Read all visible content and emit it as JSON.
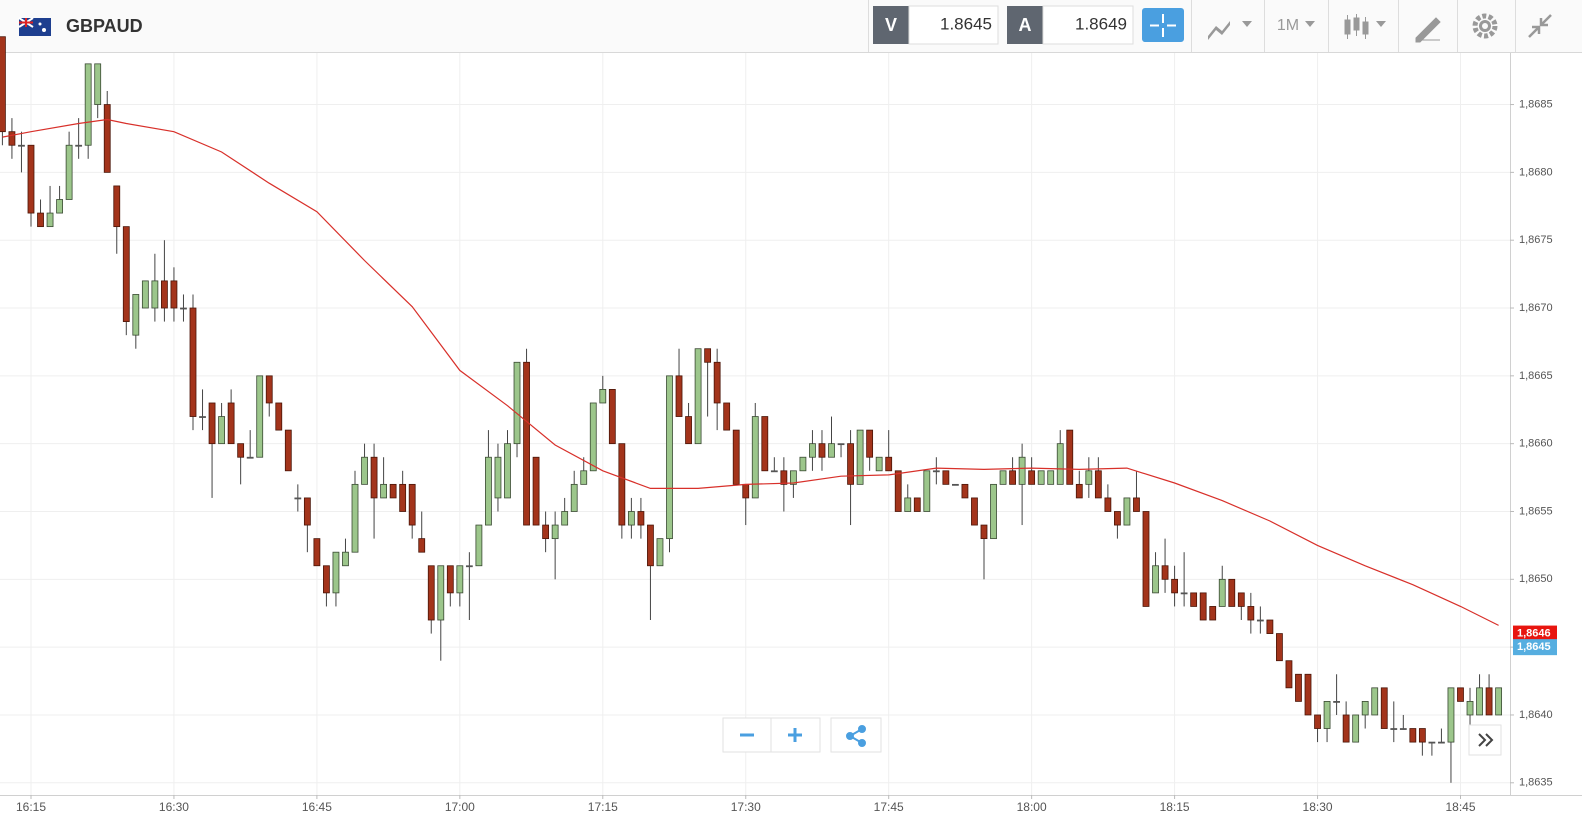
{
  "toolbar": {
    "symbol": "GBPAUD",
    "sell_label": "V",
    "sell_price": "1.8645",
    "buy_label": "A",
    "buy_price": "1.8649",
    "timeframe": "1M"
  },
  "chart_data": {
    "type": "candlestick",
    "up_color": "#9cc68b",
    "down_color": "#a3341b",
    "ylim": [
      1.86341,
      1.86888
    ],
    "yticks": [
      {
        "value": 1.8635,
        "label": "1,8635"
      },
      {
        "value": 1.864,
        "label": "1,8640"
      },
      {
        "value": 1.8645,
        "label": "1,8645"
      },
      {
        "value": 1.865,
        "label": "1,8650"
      },
      {
        "value": 1.8655,
        "label": "1,8655"
      },
      {
        "value": 1.866,
        "label": "1,8660"
      },
      {
        "value": 1.8665,
        "label": "1,8665"
      },
      {
        "value": 1.867,
        "label": "1,8670"
      },
      {
        "value": 1.8675,
        "label": "1,8675"
      },
      {
        "value": 1.868,
        "label": "1,8680"
      },
      {
        "value": 1.8685,
        "label": "1,8685"
      }
    ],
    "xticks": [
      "16:15",
      "16:30",
      "16:45",
      "17:00",
      "17:15",
      "17:30",
      "17:45",
      "18:00",
      "18:15",
      "18:30",
      "18:45"
    ],
    "grid": true,
    "markers": [
      {
        "value": 1.8646,
        "label": "1,8646",
        "color": "#e8150f"
      },
      {
        "value": 1.8645,
        "label": "1,8645",
        "color": "#56aee0"
      }
    ],
    "x": [
      "16:12",
      "16:13",
      "16:14",
      "16:15",
      "16:16",
      "16:17",
      "16:18",
      "16:19",
      "16:20",
      "16:21",
      "16:22",
      "16:23",
      "16:24",
      "16:25",
      "16:26",
      "16:27",
      "16:28",
      "16:29",
      "16:30",
      "16:31",
      "16:32",
      "16:33",
      "16:34",
      "16:35",
      "16:36",
      "16:37",
      "16:38",
      "16:39",
      "16:40",
      "16:41",
      "16:42",
      "16:43",
      "16:44",
      "16:45",
      "16:46",
      "16:47",
      "16:48",
      "16:49",
      "16:50",
      "16:51",
      "16:52",
      "16:53",
      "16:54",
      "16:55",
      "16:56",
      "16:57",
      "16:58",
      "16:59",
      "17:00",
      "17:01",
      "17:02",
      "17:03",
      "17:04",
      "17:05",
      "17:06",
      "17:07",
      "17:08",
      "17:09",
      "17:10",
      "17:11",
      "17:12",
      "17:13",
      "17:14",
      "17:15",
      "17:16",
      "17:17",
      "17:18",
      "17:19",
      "17:20",
      "17:21",
      "17:22",
      "17:23",
      "17:24",
      "17:25",
      "17:26",
      "17:27",
      "17:28",
      "17:29",
      "17:30",
      "17:31",
      "17:32",
      "17:33",
      "17:34",
      "17:35",
      "17:36",
      "17:37",
      "17:38",
      "17:39",
      "17:40",
      "17:41",
      "17:42",
      "17:43",
      "17:44",
      "17:45",
      "17:46",
      "17:47",
      "17:48",
      "17:49",
      "17:50",
      "17:51",
      "17:52",
      "17:53",
      "17:54",
      "17:55",
      "17:56",
      "17:57",
      "17:58",
      "17:59",
      "18:00",
      "18:01",
      "18:02",
      "18:03",
      "18:04",
      "18:05",
      "18:06",
      "18:07",
      "18:08",
      "18:09",
      "18:10",
      "18:11",
      "18:12",
      "18:13",
      "18:14",
      "18:15",
      "18:16",
      "18:17",
      "18:18",
      "18:19",
      "18:20",
      "18:21",
      "18:22",
      "18:23",
      "18:24",
      "18:25",
      "18:26",
      "18:27",
      "18:28",
      "18:29",
      "18:30",
      "18:31",
      "18:32",
      "18:33",
      "18:34",
      "18:35",
      "18:36",
      "18:37",
      "18:38",
      "18:39",
      "18:40",
      "18:41",
      "18:42",
      "18:43",
      "18:44",
      "18:45",
      "18:46",
      "18:47",
      "18:48",
      "18:49"
    ],
    "ohlc": [
      [
        1.869,
        1.869,
        1.8682,
        1.8683
      ],
      [
        1.8683,
        1.8684,
        1.8681,
        1.8682
      ],
      [
        1.8682,
        1.8683,
        1.868,
        1.8682
      ],
      [
        1.8682,
        1.8682,
        1.8676,
        1.8677
      ],
      [
        1.8677,
        1.8678,
        1.8676,
        1.8676
      ],
      [
        1.8676,
        1.8679,
        1.8676,
        1.8677
      ],
      [
        1.8677,
        1.8679,
        1.8677,
        1.8678
      ],
      [
        1.8678,
        1.8683,
        1.8678,
        1.8682
      ],
      [
        1.8682,
        1.8684,
        1.8681,
        1.8682
      ],
      [
        1.8682,
        1.8688,
        1.8681,
        1.8688
      ],
      [
        1.8685,
        1.8688,
        1.8684,
        1.8688
      ],
      [
        1.8685,
        1.8686,
        1.868,
        1.868
      ],
      [
        1.8679,
        1.8679,
        1.8674,
        1.8676
      ],
      [
        1.8676,
        1.8676,
        1.8668,
        1.8669
      ],
      [
        1.8668,
        1.8671,
        1.8667,
        1.8671
      ],
      [
        1.867,
        1.8672,
        1.867,
        1.8672
      ],
      [
        1.867,
        1.8674,
        1.8669,
        1.8672
      ],
      [
        1.8672,
        1.8675,
        1.8669,
        1.867
      ],
      [
        1.8672,
        1.8673,
        1.8669,
        1.867
      ],
      [
        1.867,
        1.8671,
        1.8669,
        1.867
      ],
      [
        1.867,
        1.8671,
        1.8661,
        1.8662
      ],
      [
        1.8662,
        1.8664,
        1.8661,
        1.8662
      ],
      [
        1.8663,
        1.8663,
        1.8656,
        1.866
      ],
      [
        1.866,
        1.8663,
        1.866,
        1.8662
      ],
      [
        1.8663,
        1.8664,
        1.866,
        1.866
      ],
      [
        1.866,
        1.866,
        1.8657,
        1.8659
      ],
      [
        1.8659,
        1.8661,
        1.8659,
        1.8659
      ],
      [
        1.8659,
        1.8665,
        1.8659,
        1.8665
      ],
      [
        1.8665,
        1.8665,
        1.8662,
        1.8663
      ],
      [
        1.8663,
        1.8663,
        1.8661,
        1.8661
      ],
      [
        1.8661,
        1.8661,
        1.8658,
        1.8658
      ],
      [
        1.8656,
        1.8657,
        1.8655,
        1.8656
      ],
      [
        1.8656,
        1.8656,
        1.8652,
        1.8654
      ],
      [
        1.8653,
        1.8653,
        1.8651,
        1.8651
      ],
      [
        1.8651,
        1.8651,
        1.8648,
        1.8649
      ],
      [
        1.8649,
        1.8652,
        1.8648,
        1.8652
      ],
      [
        1.8651,
        1.8653,
        1.8651,
        1.8652
      ],
      [
        1.8652,
        1.8658,
        1.8652,
        1.8657
      ],
      [
        1.8657,
        1.866,
        1.8657,
        1.8659
      ],
      [
        1.8659,
        1.866,
        1.8653,
        1.8656
      ],
      [
        1.8656,
        1.8659,
        1.8656,
        1.8657
      ],
      [
        1.8657,
        1.8657,
        1.8656,
        1.8656
      ],
      [
        1.8657,
        1.8658,
        1.8655,
        1.8655
      ],
      [
        1.8657,
        1.8657,
        1.8653,
        1.8654
      ],
      [
        1.8653,
        1.8655,
        1.8652,
        1.8652
      ],
      [
        1.8651,
        1.8651,
        1.8646,
        1.8647
      ],
      [
        1.8647,
        1.8651,
        1.8644,
        1.8651
      ],
      [
        1.8651,
        1.8651,
        1.8648,
        1.8649
      ],
      [
        1.8649,
        1.8651,
        1.8648,
        1.8651
      ],
      [
        1.8651,
        1.8652,
        1.8647,
        1.8651
      ],
      [
        1.8651,
        1.8654,
        1.8651,
        1.8654
      ],
      [
        1.8654,
        1.8661,
        1.8654,
        1.8659
      ],
      [
        1.8656,
        1.866,
        1.8655,
        1.8659
      ],
      [
        1.8656,
        1.8661,
        1.8656,
        1.866
      ],
      [
        1.866,
        1.8666,
        1.8659,
        1.8666
      ],
      [
        1.8666,
        1.8667,
        1.8654,
        1.8654
      ],
      [
        1.8659,
        1.8659,
        1.8654,
        1.8654
      ],
      [
        1.8654,
        1.8655,
        1.8652,
        1.8653
      ],
      [
        1.8653,
        1.8655,
        1.865,
        1.8654
      ],
      [
        1.8654,
        1.8656,
        1.8654,
        1.8655
      ],
      [
        1.8655,
        1.8658,
        1.8655,
        1.8657
      ],
      [
        1.8657,
        1.8659,
        1.8657,
        1.8658
      ],
      [
        1.8658,
        1.8663,
        1.8658,
        1.8663
      ],
      [
        1.8663,
        1.8665,
        1.8663,
        1.8664
      ],
      [
        1.8664,
        1.8664,
        1.866,
        1.866
      ],
      [
        1.866,
        1.866,
        1.8653,
        1.8654
      ],
      [
        1.8654,
        1.8656,
        1.8653,
        1.8655
      ],
      [
        1.8655,
        1.8656,
        1.8653,
        1.8654
      ],
      [
        1.8654,
        1.8654,
        1.8647,
        1.8651
      ],
      [
        1.8651,
        1.8653,
        1.8651,
        1.8653
      ],
      [
        1.8653,
        1.8665,
        1.8652,
        1.8665
      ],
      [
        1.8665,
        1.8667,
        1.8662,
        1.8662
      ],
      [
        1.8662,
        1.8663,
        1.866,
        1.866
      ],
      [
        1.866,
        1.8667,
        1.866,
        1.8667
      ],
      [
        1.8667,
        1.8667,
        1.8662,
        1.8666
      ],
      [
        1.8666,
        1.8667,
        1.8661,
        1.8663
      ],
      [
        1.8663,
        1.8663,
        1.8661,
        1.8661
      ],
      [
        1.8661,
        1.8661,
        1.8657,
        1.8657
      ],
      [
        1.8657,
        1.8657,
        1.8654,
        1.8656
      ],
      [
        1.8656,
        1.8663,
        1.8656,
        1.8662
      ],
      [
        1.8662,
        1.8662,
        1.8658,
        1.8658
      ],
      [
        1.8658,
        1.8659,
        1.8658,
        1.8658
      ],
      [
        1.8658,
        1.8659,
        1.8655,
        1.8657
      ],
      [
        1.8657,
        1.8658,
        1.8656,
        1.8658
      ],
      [
        1.8658,
        1.8659,
        1.8658,
        1.8659
      ],
      [
        1.8659,
        1.8661,
        1.8658,
        1.866
      ],
      [
        1.866,
        1.8661,
        1.8658,
        1.8659
      ],
      [
        1.8659,
        1.8662,
        1.8659,
        1.866
      ],
      [
        1.866,
        1.866,
        1.8659,
        1.866
      ],
      [
        1.866,
        1.8661,
        1.8654,
        1.8657
      ],
      [
        1.8657,
        1.8661,
        1.8657,
        1.8661
      ],
      [
        1.8661,
        1.8661,
        1.8658,
        1.8659
      ],
      [
        1.8658,
        1.8659,
        1.8658,
        1.8659
      ],
      [
        1.8659,
        1.8661,
        1.8658,
        1.8658
      ],
      [
        1.8658,
        1.8658,
        1.8655,
        1.8655
      ],
      [
        1.8655,
        1.8657,
        1.8655,
        1.8656
      ],
      [
        1.8656,
        1.8656,
        1.8655,
        1.8655
      ],
      [
        1.8655,
        1.8658,
        1.8655,
        1.8658
      ],
      [
        1.8658,
        1.8659,
        1.8657,
        1.8658
      ],
      [
        1.8658,
        1.8658,
        1.8657,
        1.8657
      ],
      [
        1.8657,
        1.8657,
        1.8657,
        1.8657
      ],
      [
        1.8657,
        1.8657,
        1.8656,
        1.8656
      ],
      [
        1.8656,
        1.8656,
        1.8654,
        1.8654
      ],
      [
        1.8654,
        1.8654,
        1.865,
        1.8653
      ],
      [
        1.8653,
        1.8657,
        1.8653,
        1.8657
      ],
      [
        1.8657,
        1.8658,
        1.8657,
        1.8658
      ],
      [
        1.8658,
        1.8659,
        1.8657,
        1.8657
      ],
      [
        1.8657,
        1.866,
        1.8654,
        1.8659
      ],
      [
        1.8658,
        1.8659,
        1.8657,
        1.8657
      ],
      [
        1.8657,
        1.8658,
        1.8657,
        1.8658
      ],
      [
        1.8657,
        1.8658,
        1.8657,
        1.8658
      ],
      [
        1.8657,
        1.8661,
        1.8657,
        1.866
      ],
      [
        1.8661,
        1.8661,
        1.8657,
        1.8657
      ],
      [
        1.8657,
        1.8658,
        1.8656,
        1.8656
      ],
      [
        1.8657,
        1.8659,
        1.8656,
        1.8658
      ],
      [
        1.8658,
        1.8659,
        1.8656,
        1.8656
      ],
      [
        1.8656,
        1.8657,
        1.8655,
        1.8655
      ],
      [
        1.8655,
        1.8655,
        1.8653,
        1.8654
      ],
      [
        1.8654,
        1.8656,
        1.8654,
        1.8656
      ],
      [
        1.8656,
        1.8658,
        1.8655,
        1.8655
      ],
      [
        1.8655,
        1.8655,
        1.8648,
        1.8648
      ],
      [
        1.8649,
        1.8652,
        1.8649,
        1.8651
      ],
      [
        1.8651,
        1.8653,
        1.8649,
        1.865
      ],
      [
        1.865,
        1.8651,
        1.8648,
        1.8649
      ],
      [
        1.8649,
        1.8652,
        1.8648,
        1.8649
      ],
      [
        1.8649,
        1.8649,
        1.8648,
        1.8648
      ],
      [
        1.8649,
        1.8649,
        1.8647,
        1.8647
      ],
      [
        1.8648,
        1.8648,
        1.8647,
        1.8647
      ],
      [
        1.8648,
        1.8651,
        1.8648,
        1.865
      ],
      [
        1.865,
        1.865,
        1.8648,
        1.8648
      ],
      [
        1.8649,
        1.8649,
        1.8647,
        1.8648
      ],
      [
        1.8648,
        1.8649,
        1.8646,
        1.8647
      ],
      [
        1.8647,
        1.8648,
        1.8646,
        1.8647
      ],
      [
        1.8647,
        1.8647,
        1.8646,
        1.8646
      ],
      [
        1.8646,
        1.8646,
        1.8644,
        1.8644
      ],
      [
        1.8644,
        1.8644,
        1.8642,
        1.8642
      ],
      [
        1.8643,
        1.8643,
        1.8641,
        1.8641
      ],
      [
        1.8643,
        1.8643,
        1.864,
        1.864
      ],
      [
        1.864,
        1.864,
        1.8638,
        1.8639
      ],
      [
        1.8639,
        1.8641,
        1.8638,
        1.8641
      ],
      [
        1.8641,
        1.8643,
        1.864,
        1.8641
      ],
      [
        1.864,
        1.8641,
        1.8638,
        1.8638
      ],
      [
        1.8638,
        1.864,
        1.8638,
        1.864
      ],
      [
        1.864,
        1.8641,
        1.8639,
        1.8641
      ],
      [
        1.864,
        1.8642,
        1.864,
        1.8642
      ],
      [
        1.8642,
        1.8642,
        1.8639,
        1.8639
      ],
      [
        1.8639,
        1.8641,
        1.8638,
        1.8639
      ],
      [
        1.8639,
        1.864,
        1.8639,
        1.8639
      ],
      [
        1.8639,
        1.8639,
        1.8638,
        1.8638
      ],
      [
        1.8639,
        1.8639,
        1.8637,
        1.8638
      ],
      [
        1.8638,
        1.8638,
        1.8637,
        1.8638
      ],
      [
        1.8638,
        1.8639,
        1.8638,
        1.8638
      ],
      [
        1.8638,
        1.8642,
        1.8635,
        1.8642
      ],
      [
        1.8642,
        1.8642,
        1.8641,
        1.8641
      ],
      [
        1.864,
        1.8642,
        1.8639,
        1.8641
      ],
      [
        1.864,
        1.8643,
        1.864,
        1.8642
      ],
      [
        1.8642,
        1.8643,
        1.864,
        1.864
      ],
      [
        1.864,
        1.8642,
        1.864,
        1.8642
      ]
    ],
    "ma": {
      "color": "#d8302a",
      "x": [
        "16:12",
        "16:15",
        "16:20",
        "16:23",
        "16:25",
        "16:30",
        "16:35",
        "16:40",
        "16:45",
        "16:50",
        "16:55",
        "17:00",
        "17:05",
        "17:10",
        "17:15",
        "17:20",
        "17:25",
        "17:30",
        "17:35",
        "17:40",
        "17:45",
        "17:50",
        "17:55",
        "18:00",
        "18:05",
        "18:10",
        "18:15",
        "18:20",
        "18:25",
        "18:30",
        "18:35",
        "18:40",
        "18:45",
        "18:49"
      ],
      "values": [
        1.86826,
        1.8683,
        1.86836,
        1.86839,
        1.86836,
        1.8683,
        1.86815,
        1.86792,
        1.86771,
        1.86735,
        1.86701,
        1.86654,
        1.86628,
        1.86599,
        1.8658,
        1.86567,
        1.86567,
        1.8657,
        1.86571,
        1.86576,
        1.86577,
        1.86582,
        1.86581,
        1.86582,
        1.86581,
        1.86582,
        1.86571,
        1.86558,
        1.86543,
        1.86525,
        1.8651,
        1.86496,
        1.8648,
        1.86466
      ]
    }
  }
}
